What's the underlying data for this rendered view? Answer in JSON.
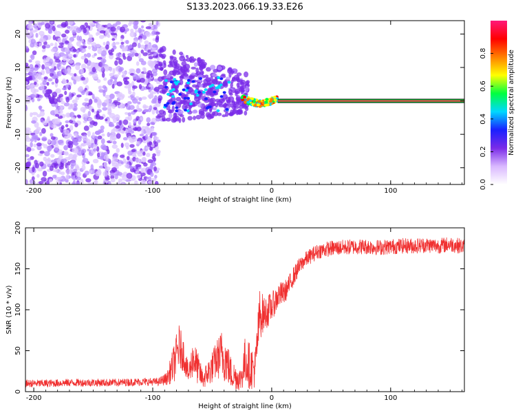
{
  "title": "S133.2023.066.19.33.E26",
  "colors": {
    "snr_line": "#f03030",
    "spec_line": "#ff1a4a",
    "scatter_purple": "#8a2be2",
    "frame": "#000000"
  },
  "colorscale": [
    "#ffffff",
    "#d9b8ff",
    "#7a2be8",
    "#1a20ff",
    "#00d8ff",
    "#00ff40",
    "#ffff00",
    "#ff8000",
    "#ff0000",
    "#ff1a7a"
  ],
  "chart_data": [
    {
      "type": "heatmap",
      "title": "S133.2023.066.19.33.E26",
      "xlabel": "Height of straight line (km)",
      "ylabel": "Frequency (Hz)",
      "xlim": [
        -207,
        162
      ],
      "ylim": [
        -25,
        24
      ],
      "xticks": [
        -200,
        -100,
        0,
        100
      ],
      "yticks": [
        -20,
        -10,
        0,
        10,
        20
      ],
      "x_tick_labels": [
        "-200",
        "-100",
        "0",
        "100"
      ],
      "y_tick_labels": [
        "-20",
        "-10",
        "0",
        "10",
        "20"
      ],
      "colorbar": {
        "label": "Normalized spectral amplitude",
        "range": [
          0,
          1
        ],
        "ticks": [
          0.0,
          0.2,
          0.4,
          0.6,
          0.8
        ],
        "tick_labels": [
          "0.0",
          "0.2",
          "0.4",
          "0.6",
          "0.8"
        ]
      },
      "series": [
        {
          "region": "noise",
          "x_range": [
            -207,
            -95
          ],
          "y_range": [
            -25,
            24
          ],
          "amplitude": [
            0.03,
            0.15
          ]
        },
        {
          "region": "transition",
          "x_range": [
            -95,
            -20
          ],
          "y_range": [
            -8,
            15
          ],
          "amplitude": [
            0.1,
            0.35
          ]
        },
        {
          "region": "signal",
          "x_range": [
            -25,
            5
          ],
          "center_freq": [
            0,
            1
          ],
          "amplitude": [
            0.4,
            0.9
          ]
        },
        {
          "region": "carrier",
          "x_range": [
            5,
            162
          ],
          "center_freq": 0,
          "amplitude": 0.95
        }
      ]
    },
    {
      "type": "line",
      "xlabel": "Height of straight line (km)",
      "ylabel": "SNR (10 * v/v)",
      "xlim": [
        -207,
        162
      ],
      "ylim": [
        0,
        200
      ],
      "xticks": [
        -200,
        -100,
        0,
        100
      ],
      "yticks": [
        0,
        50,
        100,
        150,
        200
      ],
      "x_tick_labels": [
        "-200",
        "-100",
        "0",
        "100"
      ],
      "y_tick_labels": [
        "0",
        "50",
        "100",
        "150",
        "200"
      ],
      "series": [
        {
          "x": [
            -207,
            -190,
            -170,
            -150,
            -130,
            -110,
            -95,
            -88,
            -82,
            -78,
            -74,
            -70,
            -66,
            -62,
            -58,
            -54,
            -50,
            -46,
            -42,
            -38,
            -34,
            -30,
            -26,
            -22,
            -18,
            -14,
            -10,
            -6,
            -2,
            2,
            6,
            10,
            14,
            18,
            22,
            26,
            30,
            35,
            40,
            50,
            60,
            70,
            80,
            90,
            100,
            110,
            120,
            130,
            140,
            150,
            162
          ],
          "y": [
            10,
            10,
            11,
            11,
            11,
            12,
            12,
            16,
            35,
            55,
            45,
            20,
            42,
            28,
            15,
            22,
            30,
            40,
            45,
            38,
            22,
            18,
            15,
            40,
            30,
            28,
            95,
            95,
            100,
            108,
            118,
            120,
            128,
            140,
            150,
            158,
            163,
            168,
            172,
            175,
            176,
            177,
            177,
            176,
            177,
            178,
            178,
            179,
            178,
            180,
            177
          ],
          "spread": [
            6,
            6,
            6,
            6,
            6,
            6,
            6,
            10,
            30,
            35,
            25,
            15,
            30,
            25,
            15,
            20,
            25,
            30,
            40,
            35,
            25,
            20,
            18,
            40,
            35,
            30,
            40,
            25,
            25,
            20,
            20,
            18,
            16,
            15,
            14,
            12,
            12,
            12,
            12,
            12,
            12,
            12,
            12,
            12,
            12,
            12,
            12,
            12,
            12,
            12,
            12
          ]
        }
      ]
    }
  ]
}
